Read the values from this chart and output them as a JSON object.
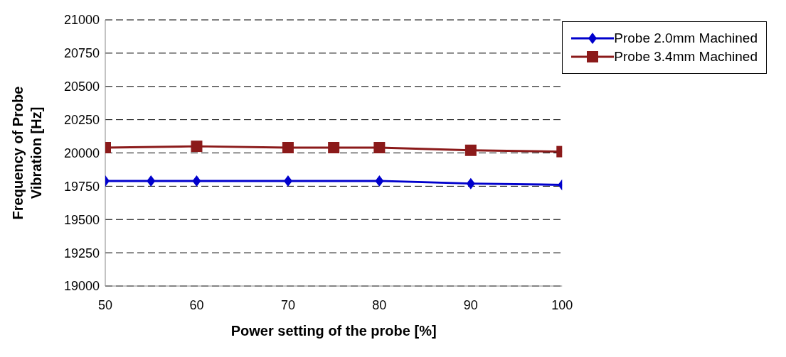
{
  "chart_data": {
    "type": "line",
    "xlabel": "Power setting of the probe [%]",
    "ylabel": "Frequency of Probe Vibration [Hz]",
    "xlim": [
      50,
      100
    ],
    "xticks": [
      50,
      60,
      70,
      80,
      90,
      100
    ],
    "ylim": [
      19000,
      21000
    ],
    "yticks": [
      19000,
      19250,
      19500,
      19750,
      20000,
      20250,
      20500,
      20750,
      21000
    ],
    "grid": "y",
    "legend": "top right",
    "series": [
      {
        "name": "Probe 2.0mm Machined",
        "color": "#0000cc",
        "marker": "diamond",
        "x": [
          50,
          55,
          60,
          70,
          80,
          90,
          100
        ],
        "values": [
          19790,
          19790,
          19790,
          19790,
          19790,
          19770,
          19760
        ]
      },
      {
        "name": "Probe 3.4mm Machined",
        "color": "#8b1a1a",
        "marker": "square",
        "x": [
          50,
          60,
          70,
          75,
          80,
          90,
          100
        ],
        "values": [
          20040,
          20050,
          20040,
          20040,
          20040,
          20020,
          20010
        ]
      }
    ]
  }
}
